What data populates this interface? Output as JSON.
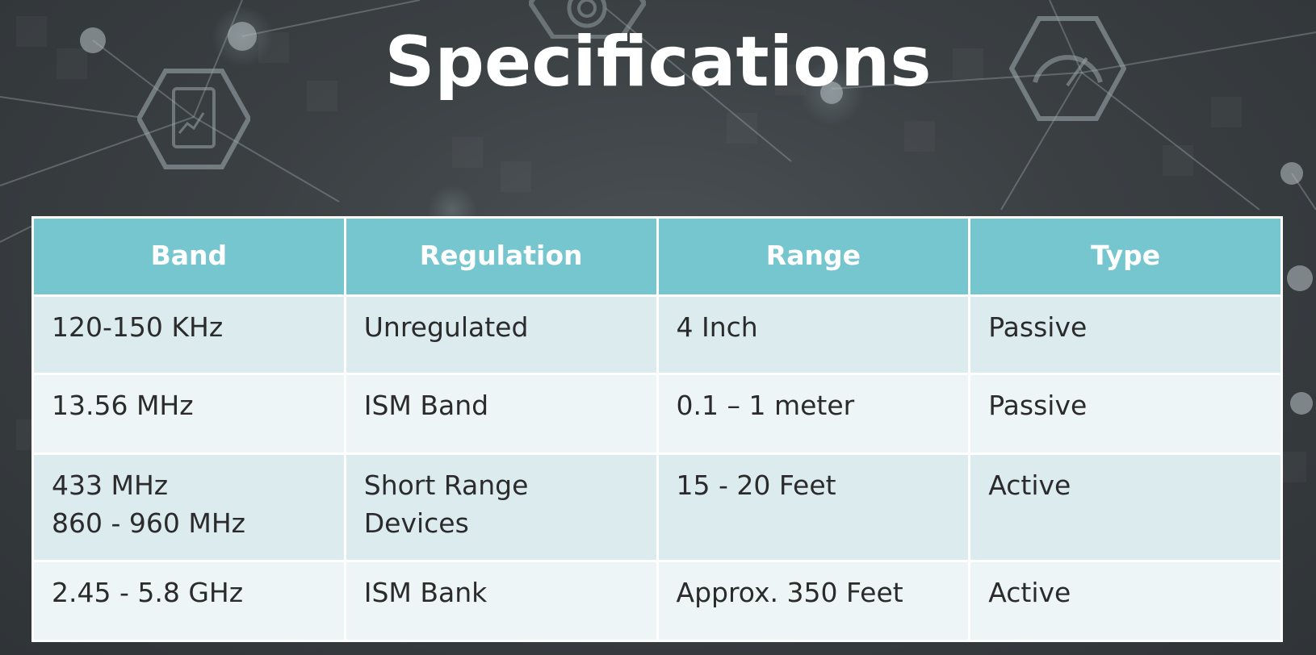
{
  "slide": {
    "title": "Specifications"
  },
  "table": {
    "headers": [
      "Band",
      "Regulation",
      "Range",
      "Type"
    ],
    "rows": [
      {
        "band": [
          "120-150 KHz"
        ],
        "regulation": [
          "Unregulated"
        ],
        "range": [
          "4 Inch"
        ],
        "type": [
          "Passive"
        ]
      },
      {
        "band": [
          "13.56 MHz"
        ],
        "regulation": [
          "ISM Band"
        ],
        "range": [
          "0.1 – 1 meter"
        ],
        "type": [
          "Passive"
        ]
      },
      {
        "band": [
          "433 MHz",
          "860 - 960 MHz"
        ],
        "regulation": [
          "Short Range",
          "Devices"
        ],
        "range": [
          "15 - 20 Feet"
        ],
        "type": [
          "Active"
        ]
      },
      {
        "band": [
          "2.45 - 5.8 GHz"
        ],
        "regulation": [
          "ISM Bank"
        ],
        "range": [
          "Approx. 350 Feet"
        ],
        "type": [
          "Active"
        ]
      }
    ]
  },
  "colors": {
    "header_bg": "#76c6cf",
    "row_odd_bg": "#dbebee",
    "row_even_bg": "#eef5f7",
    "text": "#2b2b2b",
    "background": "#3b4043"
  },
  "icons": [
    "tablet-chart-icon",
    "gear-icon",
    "speedometer-icon",
    "network-node-icon"
  ]
}
